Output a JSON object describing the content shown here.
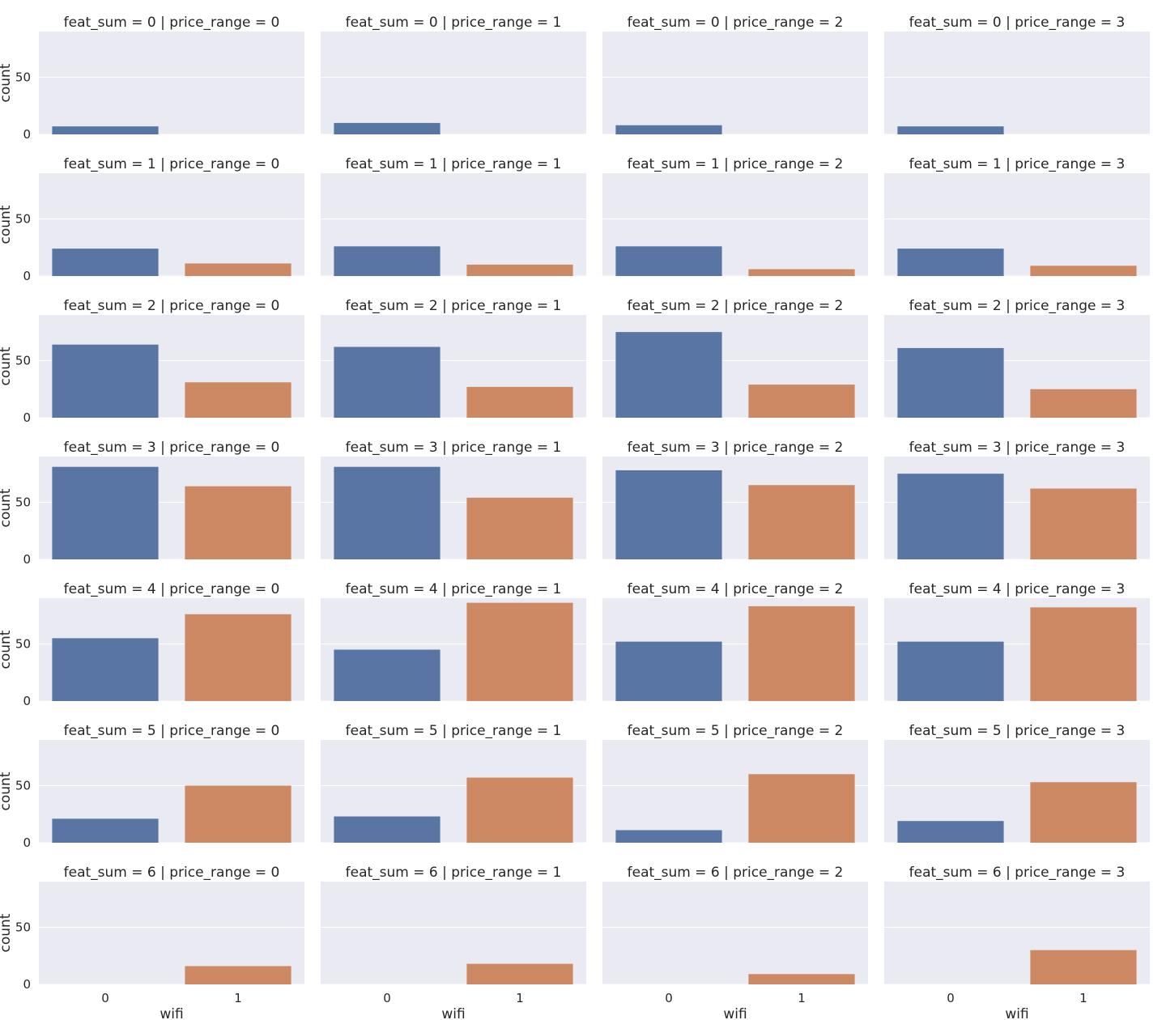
{
  "chart_data": {
    "type": "bar",
    "layout": "facet-grid",
    "row_variable": "feat_sum",
    "col_variable": "price_range",
    "rows": [
      0,
      1,
      2,
      3,
      4,
      5,
      6
    ],
    "cols": [
      0,
      1,
      2,
      3
    ],
    "categories": [
      "0",
      "1"
    ],
    "xlabel": "wifi",
    "ylabel": "count",
    "yticks": [
      0,
      50
    ],
    "ylim": [
      0,
      90
    ],
    "grid": true,
    "colors": {
      "wifi_0": "#5875a4",
      "wifi_1": "#cc8963",
      "panel_bg": "#eaeaf2",
      "grid": "#ffffff"
    },
    "panels": [
      {
        "title": "feat_sum = 0 | price_range = 0",
        "values": [
          7,
          0
        ]
      },
      {
        "title": "feat_sum = 0 | price_range = 1",
        "values": [
          10,
          0
        ]
      },
      {
        "title": "feat_sum = 0 | price_range = 2",
        "values": [
          8,
          0
        ]
      },
      {
        "title": "feat_sum = 0 | price_range = 3",
        "values": [
          7,
          0
        ]
      },
      {
        "title": "feat_sum = 1 | price_range = 0",
        "values": [
          24,
          11
        ]
      },
      {
        "title": "feat_sum = 1 | price_range = 1",
        "values": [
          26,
          10
        ]
      },
      {
        "title": "feat_sum = 1 | price_range = 2",
        "values": [
          26,
          6
        ]
      },
      {
        "title": "feat_sum = 1 | price_range = 3",
        "values": [
          24,
          9
        ]
      },
      {
        "title": "feat_sum = 2 | price_range = 0",
        "values": [
          64,
          31
        ]
      },
      {
        "title": "feat_sum = 2 | price_range = 1",
        "values": [
          62,
          27
        ]
      },
      {
        "title": "feat_sum = 2 | price_range = 2",
        "values": [
          75,
          29
        ]
      },
      {
        "title": "feat_sum = 2 | price_range = 3",
        "values": [
          61,
          25
        ]
      },
      {
        "title": "feat_sum = 3 | price_range = 0",
        "values": [
          81,
          64
        ]
      },
      {
        "title": "feat_sum = 3 | price_range = 1",
        "values": [
          81,
          54
        ]
      },
      {
        "title": "feat_sum = 3 | price_range = 2",
        "values": [
          78,
          65
        ]
      },
      {
        "title": "feat_sum = 3 | price_range = 3",
        "values": [
          75,
          62
        ]
      },
      {
        "title": "feat_sum = 4 | price_range = 0",
        "values": [
          55,
          76
        ]
      },
      {
        "title": "feat_sum = 4 | price_range = 1",
        "values": [
          45,
          86
        ]
      },
      {
        "title": "feat_sum = 4 | price_range = 2",
        "values": [
          52,
          83
        ]
      },
      {
        "title": "feat_sum = 4 | price_range = 3",
        "values": [
          52,
          82
        ]
      },
      {
        "title": "feat_sum = 5 | price_range = 0",
        "values": [
          21,
          50
        ]
      },
      {
        "title": "feat_sum = 5 | price_range = 1",
        "values": [
          23,
          57
        ]
      },
      {
        "title": "feat_sum = 5 | price_range = 2",
        "values": [
          11,
          60
        ]
      },
      {
        "title": "feat_sum = 5 | price_range = 3",
        "values": [
          19,
          53
        ]
      },
      {
        "title": "feat_sum = 6 | price_range = 0",
        "values": [
          0,
          16
        ]
      },
      {
        "title": "feat_sum = 6 | price_range = 1",
        "values": [
          0,
          18
        ]
      },
      {
        "title": "feat_sum = 6 | price_range = 2",
        "values": [
          0,
          9
        ]
      },
      {
        "title": "feat_sum = 6 | price_range = 3",
        "values": [
          0,
          30
        ]
      }
    ]
  }
}
